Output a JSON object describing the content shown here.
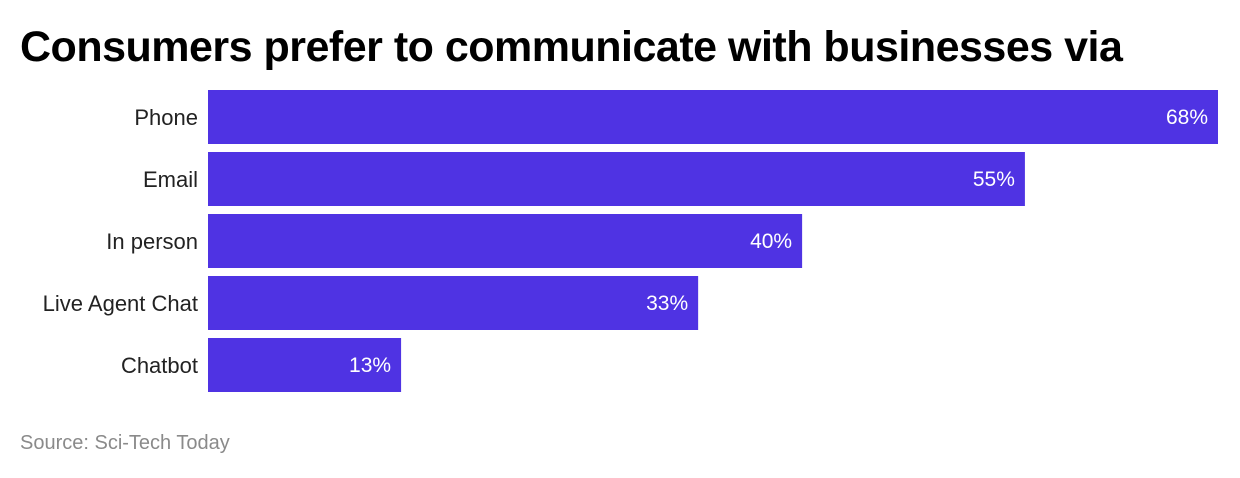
{
  "chart_data": {
    "type": "bar",
    "orientation": "horizontal",
    "title": "Consumers prefer to communicate with businesses via",
    "categories": [
      "Phone",
      "Email",
      "In person",
      "Live Agent Chat",
      "Chatbot"
    ],
    "values": [
      68,
      55,
      40,
      33,
      13
    ],
    "value_labels": [
      "68%",
      "55%",
      "40%",
      "33%",
      "13%"
    ],
    "unit": "%",
    "xlim": [
      0,
      68
    ],
    "grid": false,
    "legend": "none",
    "bar_color": "#4f33e3"
  },
  "source": "Source: Sci-Tech Today"
}
